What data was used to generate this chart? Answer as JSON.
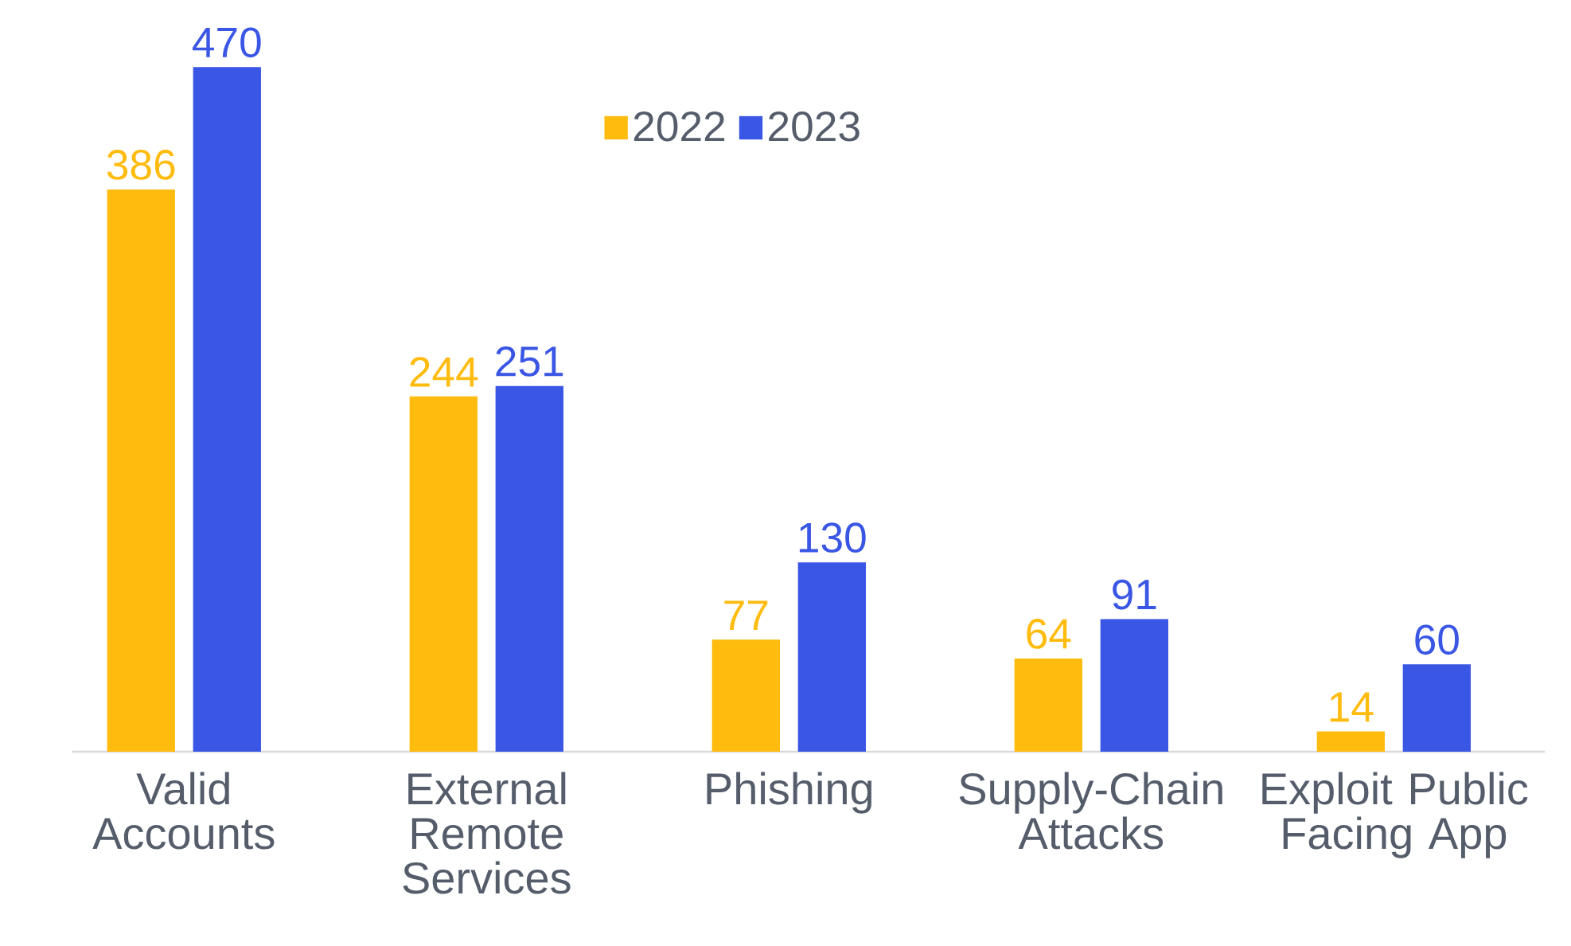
{
  "chart_data": {
    "type": "bar",
    "categories": [
      "Valid Accounts",
      "External Remote Services",
      "Phishing",
      "Supply-Chain Attacks",
      "Exploit Public Facing App"
    ],
    "series": [
      {
        "name": "2022",
        "color": "#ffbb0e",
        "values": [
          386,
          244,
          77,
          64,
          14
        ]
      },
      {
        "name": "2023",
        "color": "#3a56e4",
        "values": [
          470,
          251,
          130,
          91,
          60
        ]
      }
    ],
    "data_labels": true,
    "legend": "top"
  }
}
